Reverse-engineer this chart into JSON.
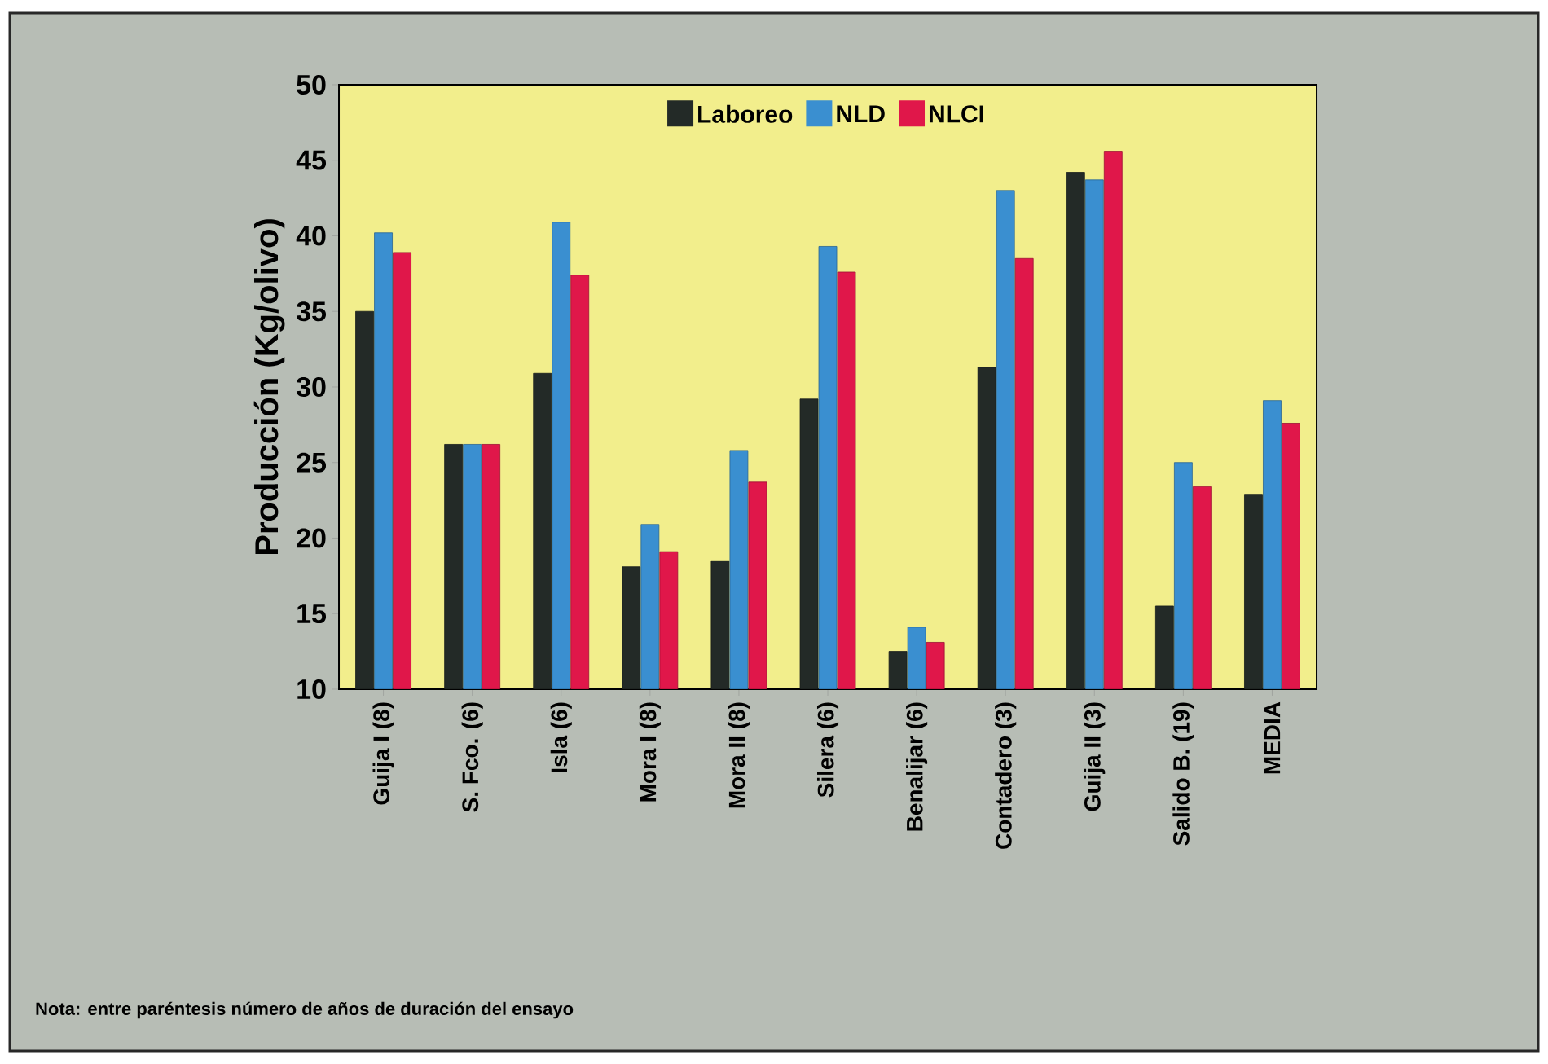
{
  "chart_data": {
    "type": "bar",
    "ylabel": "Producción (Kg/olivo)",
    "categories": [
      "Guija I (8)",
      "S. Fco. (6)",
      "Isla (6)",
      "Mora I (8)",
      "Mora II (8)",
      "Silera (6)",
      "Benalijar (6)",
      "Contadero (3)",
      "Guija II (3)",
      "Salido B. (19)",
      "MEDIA"
    ],
    "series": [
      {
        "name": "Laboreo",
        "color": "#232a27",
        "values": [
          35.0,
          26.2,
          30.9,
          18.1,
          18.5,
          29.2,
          12.5,
          31.3,
          44.2,
          15.5,
          22.9
        ]
      },
      {
        "name": "NLD",
        "color": "#3a8fd0",
        "values": [
          40.2,
          26.2,
          40.9,
          20.9,
          25.8,
          39.3,
          14.1,
          43.0,
          43.7,
          25.0,
          29.1
        ]
      },
      {
        "name": "NLCI",
        "color": "#e0174a",
        "values": [
          38.9,
          26.2,
          37.4,
          19.1,
          23.7,
          37.6,
          13.1,
          38.5,
          45.6,
          23.4,
          27.6
        ]
      }
    ],
    "ylim": [
      10,
      50
    ],
    "yticks": [
      10,
      15,
      20,
      25,
      30,
      35,
      40,
      45,
      50
    ],
    "legend": "top",
    "annotations": [
      "Nota: entre paréntesis número de años de duración del ensayo"
    ]
  }
}
